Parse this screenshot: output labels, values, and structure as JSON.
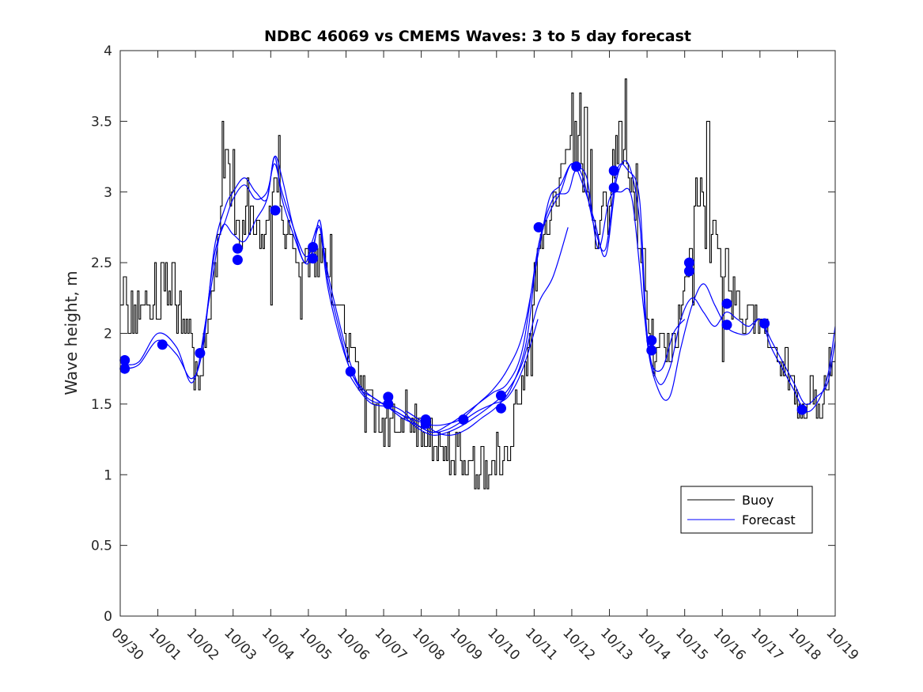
{
  "chart_data": {
    "type": "line",
    "title": "NDBC 46069 vs CMEMS Waves: 3 to 5 day forecast",
    "xlabel": "",
    "ylabel": "Wave height, m",
    "xlim": [
      0,
      19
    ],
    "ylim": [
      0,
      4
    ],
    "grid": false,
    "legend_position": "bottom-right",
    "x_tick_labels": [
      "09/30",
      "10/01",
      "10/02",
      "10/03",
      "10/04",
      "10/05",
      "10/06",
      "10/07",
      "10/08",
      "10/09",
      "10/10",
      "10/11",
      "10/12",
      "10/13",
      "10/14",
      "10/15",
      "10/16",
      "10/17",
      "10/18",
      "10/19"
    ],
    "y_ticks": [
      0,
      0.5,
      1,
      1.5,
      2,
      2.5,
      3,
      3.5,
      4
    ],
    "y_tick_labels": [
      "0",
      "0.5",
      "1",
      "1.5",
      "2",
      "2.5",
      "3",
      "3.5",
      "4"
    ],
    "legend": [
      "Buoy",
      "Forecast"
    ],
    "colors": {
      "buoy": "#000000",
      "forecast": "#0000ff",
      "marker": "#0000ff"
    },
    "buoy_keypoints": {
      "x": [
        0.0,
        0.2,
        0.5,
        0.9,
        1.2,
        1.5,
        1.8,
        1.95,
        2.1,
        2.3,
        2.5,
        2.7,
        2.85,
        3.0,
        3.2,
        3.4,
        3.6,
        3.8,
        4.0,
        4.15,
        4.3,
        4.5,
        4.8,
        5.0,
        5.2,
        5.4,
        5.6,
        5.8,
        6.0,
        6.3,
        6.6,
        6.9,
        7.2,
        7.6,
        8.0,
        8.4,
        8.8,
        9.0,
        9.2,
        9.4,
        9.6,
        9.8,
        10.0,
        10.2,
        10.4,
        10.6,
        10.8,
        11.0,
        11.3,
        11.6,
        11.9,
        12.1,
        12.3,
        12.5,
        12.7,
        12.9,
        13.1,
        13.3,
        13.4,
        13.6,
        13.8,
        14.0,
        14.2,
        14.4,
        14.6,
        14.8,
        15.0,
        15.2,
        15.4,
        15.6,
        15.8,
        16.0,
        16.2,
        16.5,
        16.8,
        17.1,
        17.4,
        17.7,
        18.0,
        18.2,
        18.4,
        18.7,
        19.0
      ],
      "y": [
        2.25,
        2.1,
        2.2,
        2.2,
        2.3,
        2.15,
        2.0,
        1.85,
        1.7,
        1.9,
        2.4,
        2.9,
        3.2,
        2.8,
        2.7,
        2.95,
        2.75,
        2.8,
        3.05,
        3.15,
        2.85,
        2.6,
        2.5,
        2.55,
        2.45,
        2.6,
        2.2,
        2.15,
        1.95,
        1.75,
        1.55,
        1.4,
        1.35,
        1.45,
        1.35,
        1.25,
        1.2,
        1.15,
        1.1,
        1.05,
        1.05,
        1.1,
        1.12,
        1.2,
        1.35,
        1.6,
        1.85,
        2.4,
        2.75,
        3.0,
        3.3,
        3.35,
        3.05,
        2.85,
        2.7,
        2.9,
        3.15,
        3.45,
        3.2,
        3.0,
        2.7,
        2.0,
        1.85,
        1.9,
        1.9,
        1.95,
        2.4,
        2.7,
        2.95,
        2.65,
        2.6,
        2.45,
        2.3,
        2.15,
        2.1,
        2.0,
        1.85,
        1.75,
        1.55,
        1.5,
        1.5,
        1.6,
        2.0
      ],
      "spikes": [
        [
          2.7,
          3.5
        ],
        [
          3.0,
          3.3
        ],
        [
          4.2,
          3.4
        ],
        [
          4.0,
          2.2
        ],
        [
          4.8,
          2.1
        ],
        [
          6.5,
          1.3
        ],
        [
          7.0,
          1.2
        ],
        [
          7.5,
          1.3
        ],
        [
          8.2,
          1.15
        ],
        [
          9.2,
          1.0
        ],
        [
          9.5,
          0.9
        ],
        [
          9.8,
          1.0
        ],
        [
          10.1,
          1.0
        ],
        [
          12.0,
          3.7
        ],
        [
          12.2,
          3.7
        ],
        [
          12.35,
          3.6
        ],
        [
          13.4,
          3.8
        ],
        [
          14.2,
          1.8
        ],
        [
          15.6,
          3.5
        ],
        [
          15.2,
          2.2
        ],
        [
          16.0,
          1.8
        ],
        [
          17.5,
          1.8
        ],
        [
          18.0,
          1.4
        ],
        [
          18.35,
          1.7
        ],
        [
          18.5,
          1.4
        ],
        [
          0.1,
          2.35
        ],
        [
          0.4,
          2.0
        ],
        [
          0.9,
          2.5
        ],
        [
          1.1,
          2.5
        ],
        [
          1.2,
          2.5
        ],
        [
          1.4,
          2.5
        ],
        [
          1.95,
          1.6
        ],
        [
          2.1,
          1.6
        ],
        [
          3.4,
          2.7
        ],
        [
          2.8,
          3.3
        ],
        [
          5.3,
          2.7
        ],
        [
          5.45,
          2.45
        ],
        [
          5.6,
          2.65
        ],
        [
          5.9,
          2.2
        ],
        [
          6.2,
          1.85
        ],
        [
          6.6,
          1.6
        ],
        [
          7.3,
          1.3
        ],
        [
          7.8,
          1.3
        ],
        [
          8.5,
          1.2
        ],
        [
          8.7,
          1.3
        ],
        [
          9.0,
          1.3
        ],
        [
          9.7,
          1.1
        ],
        [
          10.0,
          1.3
        ],
        [
          10.3,
          1.1
        ],
        [
          10.6,
          1.5
        ],
        [
          10.9,
          1.7
        ],
        [
          11.1,
          2.55
        ],
        [
          11.3,
          2.8
        ],
        [
          11.6,
          2.9
        ],
        [
          11.9,
          3.3
        ],
        [
          12.5,
          3.3
        ],
        [
          12.7,
          2.7
        ],
        [
          12.95,
          2.7
        ],
        [
          13.2,
          3.2
        ],
        [
          13.7,
          3.2
        ],
        [
          13.9,
          2.6
        ],
        [
          15.3,
          3.1
        ],
        [
          15.8,
          2.8
        ],
        [
          16.1,
          2.6
        ],
        [
          16.3,
          2.4
        ],
        [
          16.9,
          2.1
        ],
        [
          17.2,
          1.9
        ],
        [
          17.8,
          1.7
        ],
        [
          18.6,
          1.4
        ]
      ]
    },
    "forecast_series": [
      {
        "x": [
          0.1,
          0.5,
          1.0,
          1.5,
          1.9,
          2.2,
          2.5,
          2.8,
          3.0,
          3.3,
          3.6,
          3.9,
          4.1,
          4.3,
          4.6,
          4.9,
          5.1,
          5.3,
          5.5,
          5.8,
          6.1,
          6.4,
          6.7,
          7.1,
          7.5,
          7.9,
          8.3,
          8.7,
          9.1,
          9.5,
          9.9,
          10.3,
          10.7,
          11.1
        ],
        "y": [
          1.78,
          1.8,
          2.0,
          1.9,
          1.65,
          1.95,
          2.55,
          2.8,
          2.95,
          3.05,
          2.95,
          3.0,
          3.2,
          3.0,
          2.75,
          2.55,
          2.6,
          2.75,
          2.45,
          2.1,
          1.8,
          1.6,
          1.52,
          1.5,
          1.45,
          1.35,
          1.3,
          1.32,
          1.38,
          1.45,
          1.5,
          1.55,
          1.75,
          2.1
        ]
      },
      {
        "x": [
          0.1,
          0.5,
          1.0,
          1.5,
          1.9,
          2.2,
          2.5,
          2.8,
          3.0,
          3.3,
          3.6,
          3.9,
          4.1,
          4.3,
          4.6,
          4.9,
          5.1,
          5.3,
          5.5,
          5.8,
          6.1,
          6.4,
          6.7,
          7.1,
          7.5,
          7.9,
          8.3,
          8.7,
          9.1,
          9.5,
          9.9,
          10.3,
          10.7,
          11.1,
          11.5,
          11.9
        ],
        "y": [
          1.75,
          1.78,
          1.95,
          1.85,
          1.68,
          1.9,
          2.6,
          2.9,
          3.0,
          3.1,
          3.0,
          2.95,
          3.25,
          2.95,
          2.7,
          2.5,
          2.55,
          2.8,
          2.4,
          2.05,
          1.75,
          1.62,
          1.55,
          1.48,
          1.42,
          1.33,
          1.28,
          1.3,
          1.35,
          1.42,
          1.5,
          1.6,
          1.8,
          2.2,
          2.4,
          2.75
        ]
      },
      {
        "x": [
          2.1,
          2.4,
          2.7,
          3.0,
          3.3,
          3.6,
          3.9,
          4.1,
          4.3,
          4.6,
          4.9,
          5.1,
          5.3,
          5.5,
          5.8,
          6.1,
          6.4,
          6.7,
          7.1,
          7.5,
          7.9,
          8.3,
          8.7,
          9.1,
          9.5,
          9.9,
          10.3,
          10.7,
          11.1,
          11.5,
          11.9,
          12.1,
          12.4,
          12.7,
          13.0,
          13.3,
          13.6,
          13.9,
          14.1,
          14.4,
          14.7,
          15.0
        ],
        "y": [
          1.8,
          2.3,
          2.75,
          2.7,
          2.65,
          2.8,
          2.95,
          3.25,
          3.1,
          2.75,
          2.5,
          2.65,
          2.75,
          2.35,
          2.0,
          1.75,
          1.6,
          1.55,
          1.48,
          1.4,
          1.35,
          1.3,
          1.35,
          1.42,
          1.5,
          1.58,
          1.65,
          1.9,
          2.6,
          2.95,
          3.0,
          3.15,
          3.1,
          2.6,
          2.95,
          3.0,
          2.95,
          2.2,
          1.8,
          1.75,
          2.0,
          2.1
        ]
      },
      {
        "x": [
          6.1,
          6.4,
          6.7,
          7.1,
          7.5,
          7.9,
          8.3,
          8.7,
          9.1,
          9.5,
          9.9,
          10.3,
          10.7,
          11.1,
          11.4,
          11.7,
          12.0,
          12.3,
          12.6,
          12.9,
          13.2,
          13.5,
          13.8,
          14.0,
          14.3,
          14.6,
          14.9,
          15.2,
          15.5,
          15.8,
          16.1,
          16.4,
          16.7,
          17.0,
          17.3,
          17.6,
          17.9,
          18.2,
          18.5,
          18.8,
          19.0
        ],
        "y": [
          1.7,
          1.58,
          1.5,
          1.48,
          1.42,
          1.38,
          1.35,
          1.36,
          1.4,
          1.5,
          1.6,
          1.75,
          2.0,
          2.55,
          2.95,
          3.05,
          3.2,
          3.1,
          2.75,
          2.6,
          3.15,
          3.15,
          2.95,
          2.0,
          1.65,
          1.75,
          2.1,
          2.25,
          2.15,
          2.05,
          2.15,
          2.1,
          2.05,
          2.1,
          1.95,
          1.8,
          1.65,
          1.5,
          1.55,
          1.65,
          1.95
        ]
      },
      {
        "x": [
          7.6,
          8.0,
          8.4,
          8.8,
          9.2,
          9.6,
          10.0,
          10.4,
          10.8,
          11.1,
          11.4,
          11.7,
          12.0,
          12.3,
          12.6,
          12.9,
          13.2,
          13.5,
          13.8,
          14.0,
          14.3,
          14.6,
          14.9,
          15.2,
          15.5,
          15.8,
          16.1,
          16.4,
          16.7,
          17.0,
          17.3,
          17.6,
          17.9,
          18.2,
          18.5,
          18.8,
          19.0
        ],
        "y": [
          1.45,
          1.38,
          1.3,
          1.28,
          1.32,
          1.4,
          1.48,
          1.62,
          1.95,
          2.6,
          2.85,
          3.0,
          3.2,
          3.05,
          2.8,
          2.55,
          3.1,
          3.2,
          2.8,
          1.95,
          1.6,
          1.55,
          1.9,
          2.2,
          2.35,
          2.2,
          2.05,
          2.0,
          2.0,
          2.1,
          1.9,
          1.75,
          1.6,
          1.45,
          1.5,
          1.7,
          2.05
        ]
      }
    ],
    "forecast_markers": {
      "x": [
        0.12,
        0.12,
        1.12,
        2.12,
        3.12,
        3.12,
        4.12,
        5.12,
        5.12,
        6.12,
        7.12,
        7.12,
        8.12,
        8.12,
        9.12,
        10.12,
        10.12,
        11.12,
        12.12,
        13.12,
        13.12,
        14.12,
        14.12,
        15.12,
        15.12,
        16.12,
        16.12,
        17.12,
        18.12
      ],
      "y": [
        1.81,
        1.75,
        1.92,
        1.86,
        2.6,
        2.52,
        2.87,
        2.61,
        2.53,
        1.73,
        1.55,
        1.5,
        1.39,
        1.36,
        1.39,
        1.56,
        1.47,
        2.75,
        3.18,
        3.15,
        3.03,
        1.95,
        1.88,
        2.5,
        2.44,
        2.21,
        2.06,
        2.07,
        1.46
      ]
    }
  }
}
